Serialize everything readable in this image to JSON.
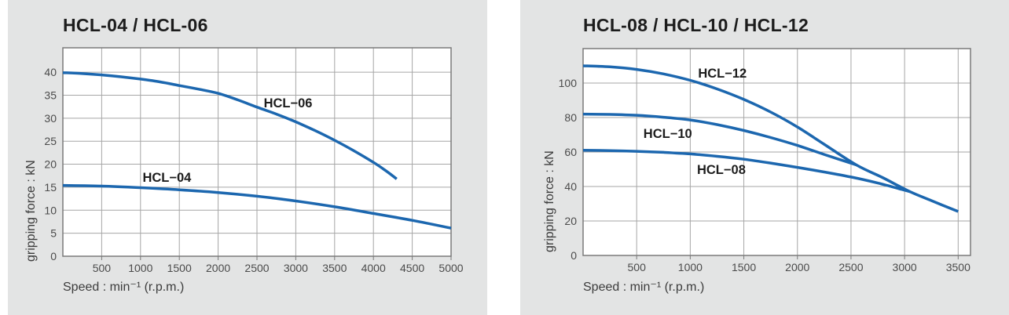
{
  "theme": {
    "panel_bg": "#e3e4e4",
    "plot_bg": "#ffffff",
    "grid_color": "#a6a6a6",
    "border_color": "#7a7a7a",
    "curve_color": "#1c67af",
    "tick_text": "#4b4b4b",
    "title_text": "#1c1c1c",
    "axis_text": "#3c3c3c",
    "curve_label_text": "#1d1d1d"
  },
  "chart_data": [
    {
      "type": "line",
      "title": "HCL-04 / HCL-06",
      "xlabel": "Speed : min⁻¹ (r.p.m.)",
      "ylabel": "gripping force : kN",
      "xlim": [
        0,
        5000
      ],
      "ylim": [
        0,
        45.3
      ],
      "xticks": [
        500,
        1000,
        1500,
        2000,
        2500,
        3000,
        3500,
        4000,
        4500,
        5000
      ],
      "yticks": [
        0,
        5,
        10,
        15,
        20,
        25,
        30,
        35,
        40
      ],
      "grid": true,
      "legend_position": "inline-curve-labels",
      "series": [
        {
          "name": "HCL−06",
          "x": [
            0,
            250,
            500,
            750,
            1000,
            1250,
            1500,
            1750,
            2000,
            2250,
            2500,
            2750,
            3000,
            3250,
            3500,
            3750,
            4000,
            4150,
            4300
          ],
          "y": [
            39.9,
            39.7,
            39.4,
            39.0,
            38.5,
            37.9,
            37.1,
            36.3,
            35.4,
            34.0,
            32.4,
            30.9,
            29.2,
            27.3,
            25.2,
            22.9,
            20.4,
            18.7,
            16.8
          ],
          "label_at": [
            2900,
            33.4
          ]
        },
        {
          "name": "HCL−04",
          "x": [
            0,
            500,
            1000,
            1500,
            2000,
            2500,
            3000,
            3500,
            4000,
            4500,
            5000
          ],
          "y": [
            15.4,
            15.25,
            14.9,
            14.45,
            13.85,
            13.05,
            12.0,
            10.75,
            9.3,
            7.8,
            6.1
          ],
          "label_at": [
            1340,
            17.2
          ]
        }
      ]
    },
    {
      "type": "line",
      "title": "HCL-08 / HCL-10 / HCL-12",
      "xlabel": "Speed : min⁻¹ (r.p.m.)",
      "ylabel": "gripping force : kN",
      "xlim": [
        0,
        3615
      ],
      "ylim": [
        0,
        120
      ],
      "xticks": [
        500,
        1000,
        1500,
        2000,
        2500,
        3000,
        3500
      ],
      "yticks": [
        0,
        20,
        40,
        60,
        80,
        100
      ],
      "grid": true,
      "legend_position": "inline-curve-labels",
      "series": [
        {
          "name": "HCL−12",
          "x": [
            0,
            250,
            500,
            750,
            1000,
            1250,
            1500,
            1750,
            2000,
            2250,
            2550,
            2800,
            3050,
            3250,
            3500
          ],
          "y": [
            110,
            109.4,
            107.9,
            105.3,
            101.6,
            96.6,
            90.5,
            83.2,
            74.5,
            64.5,
            52.5,
            45.0,
            37.0,
            31.8,
            25.5
          ],
          "label_at": [
            1300,
            106
          ]
        },
        {
          "name": "HCL−10",
          "x": [
            0,
            250,
            500,
            750,
            1000,
            1250,
            1500,
            1750,
            2000,
            2250,
            2550
          ],
          "y": [
            82,
            81.8,
            81.3,
            80.2,
            78.6,
            75.9,
            72.5,
            68.4,
            63.8,
            58.6,
            52.5
          ],
          "label_at": [
            790,
            71
          ]
        },
        {
          "name": "HCL−08",
          "x": [
            0,
            250,
            500,
            750,
            1000,
            1250,
            1500,
            1750,
            2000,
            2250,
            2500,
            2750,
            3050
          ],
          "y": [
            61,
            60.8,
            60.4,
            59.8,
            58.9,
            57.5,
            55.8,
            53.6,
            51.1,
            48.4,
            45.5,
            42.0,
            37.0
          ],
          "label_at": [
            1290,
            50
          ]
        }
      ]
    }
  ]
}
